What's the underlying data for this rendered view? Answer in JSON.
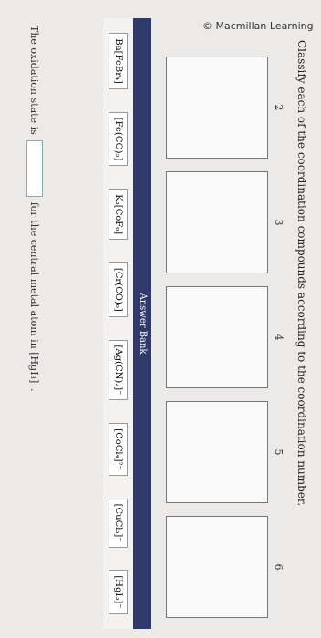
{
  "header": {
    "logo": "© Macmillan Learning"
  },
  "title": "Classify each of the coordination compounds according to the coordination number.",
  "columns": [
    {
      "label": "2"
    },
    {
      "label": "3"
    },
    {
      "label": "4"
    },
    {
      "label": "5"
    },
    {
      "label": "6"
    }
  ],
  "answer_bank": {
    "title": "Answer Bank",
    "items": [
      "Ba[FeBr₄]",
      "[Fe(CO)₅]",
      "K₃[CoF₆]",
      "[Cr(CO)₆]",
      "[Ag(CN)₂]⁻",
      "[CoCl₄]²⁻",
      "[CuCl₃]⁻",
      "[HgI₃]⁻"
    ]
  },
  "footer": {
    "before": "The oxidation state is",
    "after": "for the central metal atom in [HgI₃]⁻."
  }
}
